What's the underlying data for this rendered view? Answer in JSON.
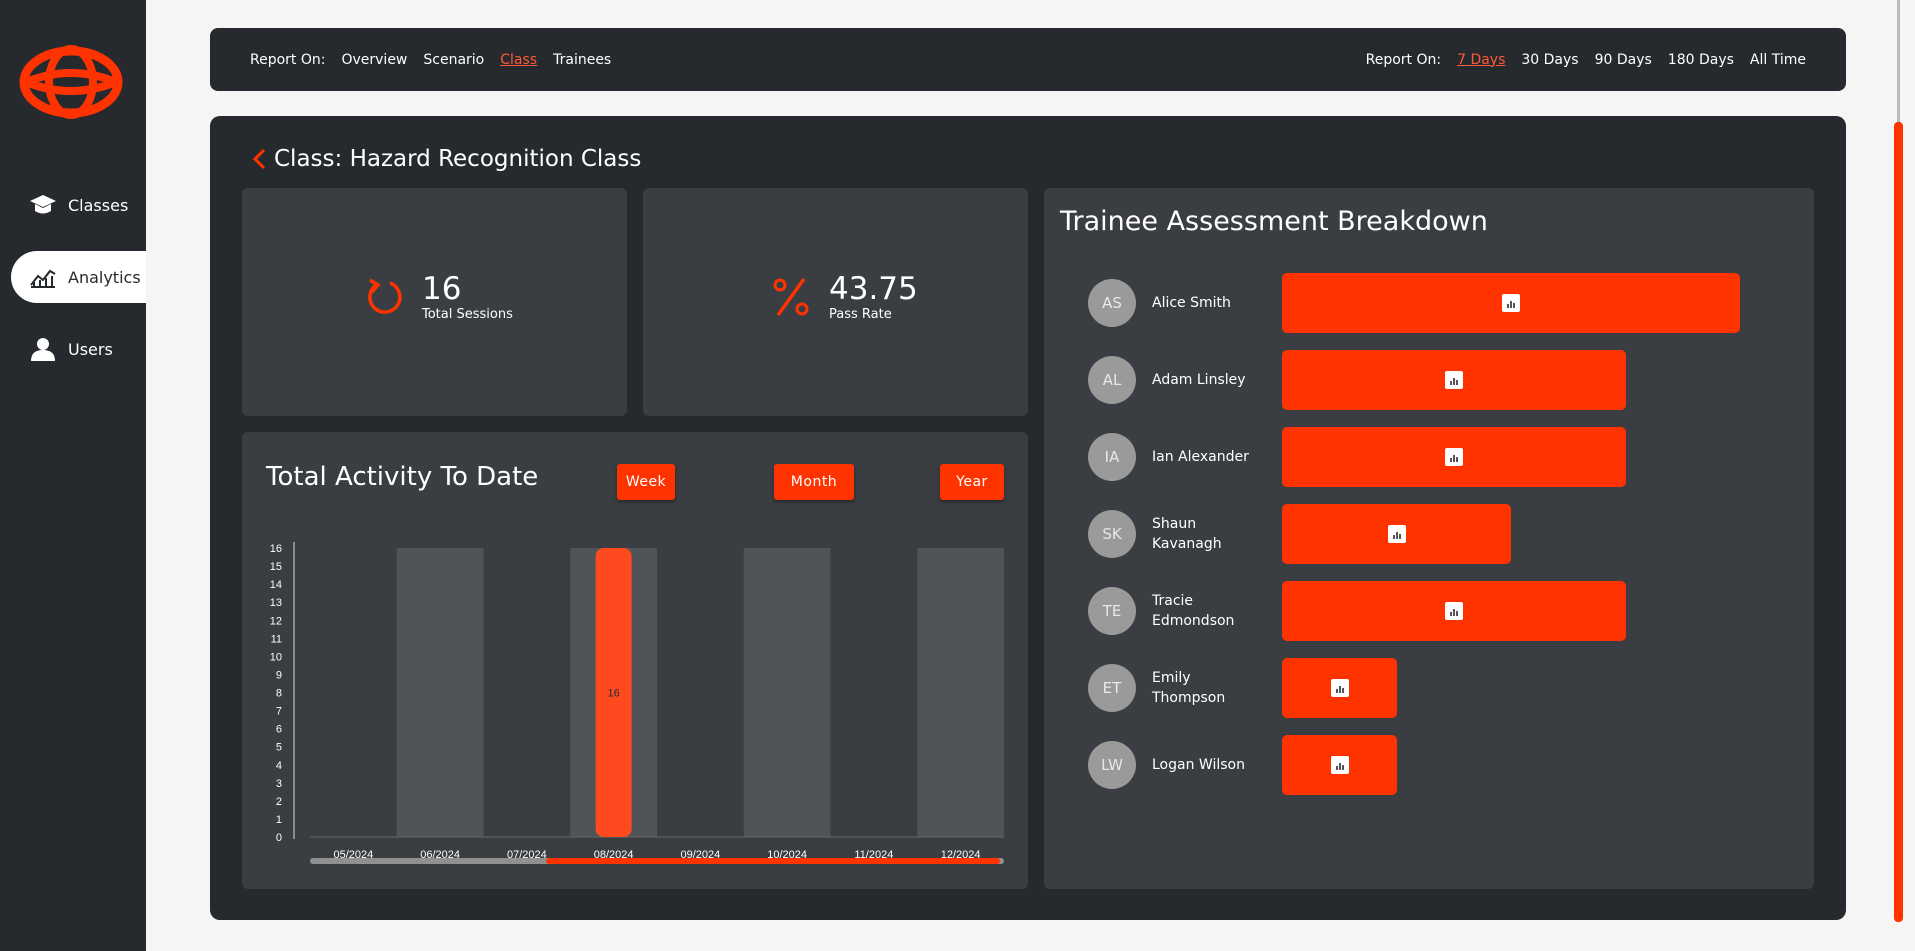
{
  "sidebar": {
    "items": [
      {
        "label": "Classes",
        "icon": "graduation-cap-icon"
      },
      {
        "label": "Analytics",
        "icon": "chart-line-icon"
      },
      {
        "label": "Users",
        "icon": "user-icon"
      }
    ]
  },
  "topbar": {
    "left_label": "Report On:",
    "left_options": [
      "Overview",
      "Scenario",
      "Class",
      "Trainees"
    ],
    "left_selected": "Class",
    "right_label": "Report On:",
    "right_options": [
      "7 Days",
      "30 Days",
      "90 Days",
      "180 Days",
      "All Time"
    ],
    "right_selected": "7 Days"
  },
  "page": {
    "title": "Class: Hazard Recognition Class"
  },
  "stats": {
    "sessions": {
      "value": "16",
      "label": "Total Sessions"
    },
    "pass_rate": {
      "value": "43.75",
      "label": "Pass Rate"
    }
  },
  "activity": {
    "title": "Total Activity To Date",
    "ranges": [
      "Week",
      "Month",
      "Year"
    ]
  },
  "chart_data": {
    "type": "bar",
    "title": "Total Activity To Date",
    "categories": [
      "05/2024",
      "06/2024",
      "07/2024",
      "08/2024",
      "09/2024",
      "10/2024",
      "11/2024",
      "12/2024"
    ],
    "values": [
      0,
      0,
      0,
      16,
      0,
      0,
      0,
      0
    ],
    "data_labels": [
      "",
      "",
      "",
      "16",
      "",
      "",
      "",
      ""
    ],
    "ylim": [
      0,
      16
    ],
    "yticks": [
      0,
      1,
      2,
      3,
      4,
      5,
      6,
      7,
      8,
      9,
      10,
      11,
      12,
      13,
      14,
      15,
      16
    ],
    "xlabel": "",
    "ylabel": ""
  },
  "scroll_position": 0.34,
  "breakdown": {
    "title": "Trainee Assessment Breakdown",
    "trainees": [
      {
        "initials": "AS",
        "name": "Alice Smith",
        "score": 8
      },
      {
        "initials": "AL",
        "name": "Adam Linsley",
        "score": 6
      },
      {
        "initials": "IA",
        "name": "Ian Alexander",
        "score": 6
      },
      {
        "initials": "SK",
        "name": "Shaun Kavanagh",
        "score": 4
      },
      {
        "initials": "TE",
        "name": "Tracie Edmondson",
        "score": 6
      },
      {
        "initials": "ET",
        "name": "Emily Thompson",
        "score": 2
      },
      {
        "initials": "LW",
        "name": "Logan Wilson",
        "score": 2
      }
    ],
    "max_score": 8
  },
  "colors": {
    "accent": "#ff3300",
    "panel": "#26292d",
    "card": "#3a3d41"
  }
}
